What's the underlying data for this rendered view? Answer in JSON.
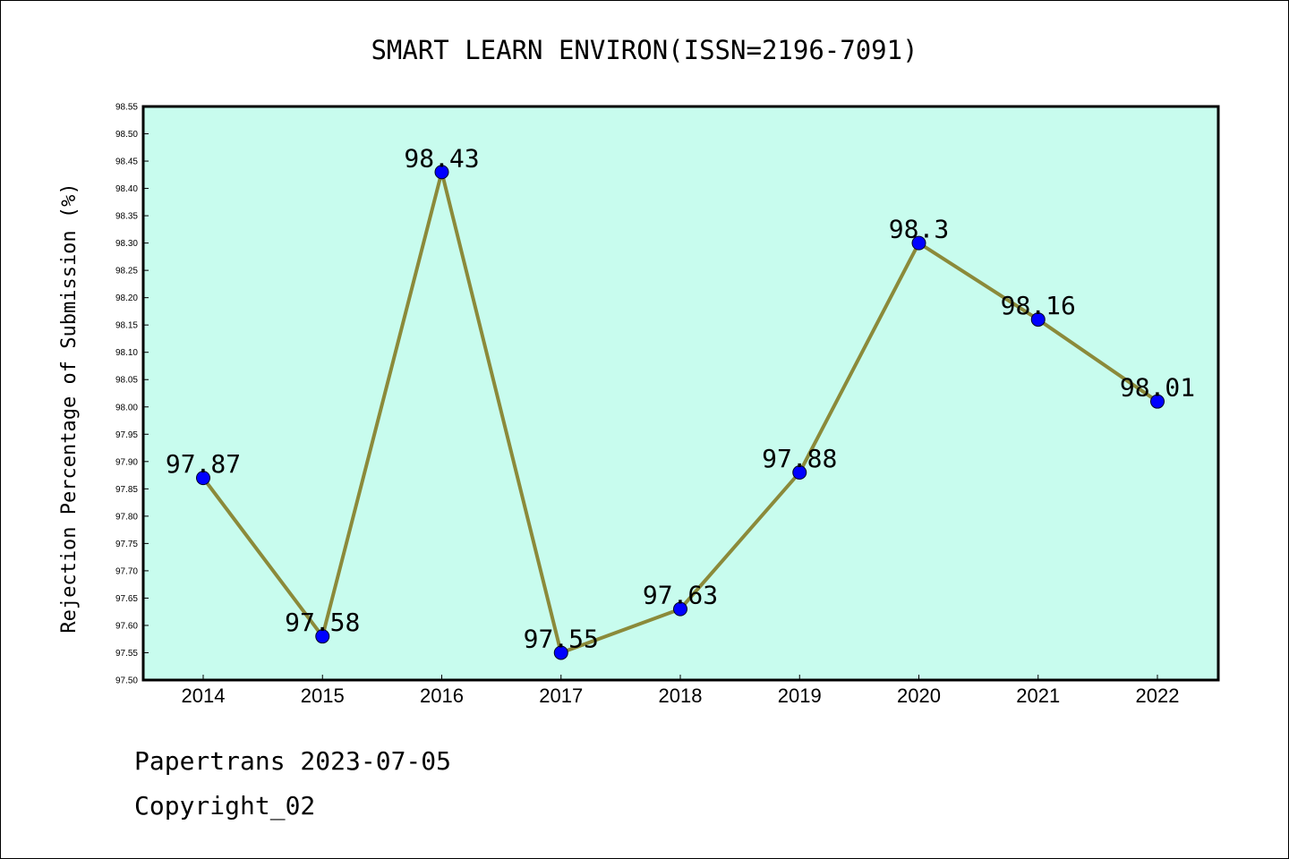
{
  "chart_data": {
    "type": "line",
    "title": "SMART LEARN ENVIRON(ISSN=2196-7091)",
    "xlabel": "",
    "ylabel": "Rejection Percentage of Submission (%)",
    "categories": [
      "2014",
      "2015",
      "2016",
      "2017",
      "2018",
      "2019",
      "2020",
      "2021",
      "2022"
    ],
    "series": [
      {
        "values": [
          97.87,
          97.58,
          98.43,
          97.55,
          97.63,
          97.88,
          98.3,
          98.16,
          98.01
        ],
        "labels": [
          "97.87",
          "97.58",
          "98.43",
          "97.55",
          "97.63",
          "97.88",
          "98.3",
          "98.16",
          "98.01"
        ]
      }
    ],
    "ylim": [
      97.5,
      98.55
    ],
    "yticks": [
      "97.50",
      "97.55",
      "97.60",
      "97.65",
      "97.70",
      "97.75",
      "97.80",
      "97.85",
      "97.90",
      "97.95",
      "98.00",
      "98.05",
      "98.10",
      "98.15",
      "98.20",
      "98.25",
      "98.30",
      "98.35",
      "98.40",
      "98.45",
      "98.50",
      "98.55"
    ],
    "grid": false,
    "colors": {
      "plot_background": "#c8fcee",
      "line": "#8b8a3a",
      "marker": "#0000ff"
    }
  },
  "footer": {
    "line1": "Papertrans 2023-07-05",
    "line2": "Copyright_02"
  }
}
